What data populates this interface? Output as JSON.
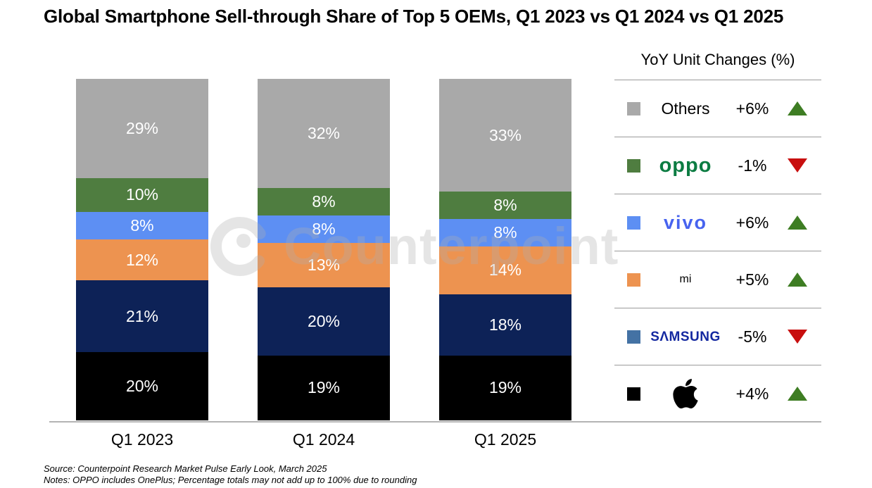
{
  "title": "Global Smartphone Sell-through Share of Top 5 OEMs, Q1 2023 vs Q1 2024 vs Q1 2025",
  "watermark_text": "Counterpoint",
  "chart_data": {
    "type": "bar",
    "stacked": true,
    "categories": [
      "Q1 2023",
      "Q1 2024",
      "Q1 2025"
    ],
    "series": [
      {
        "name": "Apple",
        "color": "#000000",
        "values": [
          20,
          19,
          19
        ]
      },
      {
        "name": "Samsung",
        "color": "#0d2257",
        "values": [
          21,
          20,
          18
        ]
      },
      {
        "name": "Xiaomi",
        "color": "#ed9350",
        "values": [
          12,
          13,
          14
        ]
      },
      {
        "name": "vivo",
        "color": "#5d8ff3",
        "values": [
          8,
          8,
          8
        ]
      },
      {
        "name": "OPPO",
        "color": "#4f7d40",
        "values": [
          10,
          8,
          8
        ]
      },
      {
        "name": "Others",
        "color": "#a9a9a9",
        "values": [
          29,
          32,
          33
        ]
      }
    ],
    "value_suffix": "%",
    "ylim": [
      0,
      100
    ],
    "legend_position": "right",
    "grid": false
  },
  "legend": {
    "title": "YoY Unit Changes (%)",
    "up_color": "#3e7d23",
    "down_color": "#c80f0f",
    "rows": [
      {
        "name": "Others",
        "logo_text": "Others",
        "swatch": "#a9a9a9",
        "change": "+6%",
        "direction": "up"
      },
      {
        "name": "OPPO",
        "logo_text": "oppo",
        "swatch": "#4f7d40",
        "change": "-1%",
        "direction": "down"
      },
      {
        "name": "vivo",
        "logo_text": "vivo",
        "swatch": "#5d8ff3",
        "change": "+6%",
        "direction": "up"
      },
      {
        "name": "Xiaomi",
        "logo_text": "mi",
        "swatch": "#ed9350",
        "change": "+5%",
        "direction": "up"
      },
      {
        "name": "Samsung",
        "logo_text": "SΛMSUNG",
        "swatch": "#4472a4",
        "change": "-5%",
        "direction": "down"
      },
      {
        "name": "Apple",
        "logo_text": "",
        "swatch": "#000000",
        "change": "+4%",
        "direction": "up"
      }
    ]
  },
  "footer": {
    "source": "Source: Counterpoint Research Market Pulse Early Look, March 2025",
    "notes": "Notes: OPPO includes OnePlus; Percentage totals may not add up to 100% due to rounding"
  }
}
